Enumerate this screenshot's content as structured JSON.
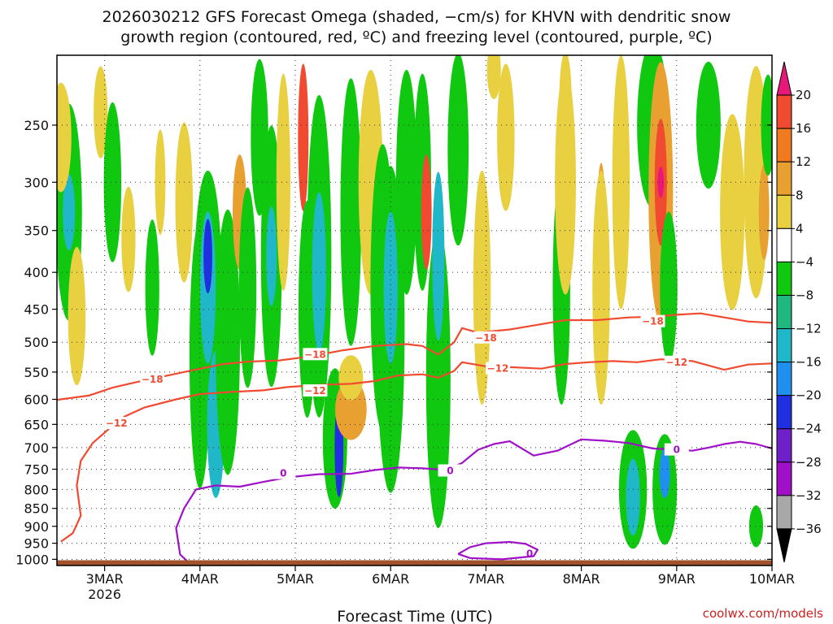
{
  "chart_data": {
    "type": "heatmap",
    "title_line1": "2026030212 GFS Forecast Omega (shaded, −cm/s) for KHVN with dendritic snow",
    "title_line2": "growth region (contoured, red, ºC) and freezing level (contoured, purple, ºC)",
    "xlabel": "Forecast Time (UTC)",
    "credit": "coolwx.com/models",
    "x_ticks": [
      {
        "label": "3MAR",
        "sub": "2026",
        "hours": 12
      },
      {
        "label": "4MAR",
        "sub": "",
        "hours": 36
      },
      {
        "label": "5MAR",
        "sub": "",
        "hours": 60
      },
      {
        "label": "6MAR",
        "sub": "",
        "hours": 84
      },
      {
        "label": "7MAR",
        "sub": "",
        "hours": 108
      },
      {
        "label": "8MAR",
        "sub": "",
        "hours": 132
      },
      {
        "label": "9MAR",
        "sub": "",
        "hours": 156
      },
      {
        "label": "10MAR",
        "sub": "",
        "hours": 180
      }
    ],
    "x_range_hours": [
      0,
      180
    ],
    "y_ticks": [
      250,
      300,
      350,
      400,
      450,
      500,
      550,
      600,
      650,
      700,
      750,
      800,
      850,
      900,
      950,
      1000
    ],
    "y_range_hpa": [
      200,
      1020
    ],
    "y_scale": "log-pressure",
    "colorbar": {
      "labels": [
        "20",
        "16",
        "12",
        "8",
        "4",
        "−4",
        "−8",
        "−12",
        "−16",
        "−20",
        "−24",
        "−28",
        "−32",
        "−36"
      ],
      "bins": [
        {
          "color": "#e8187a"
        },
        {
          "color": "#f04a30"
        },
        {
          "color": "#f07a20"
        },
        {
          "color": "#e8a030"
        },
        {
          "color": "#e8d040"
        },
        {
          "color": "#ffffff"
        },
        {
          "color": "#10c810"
        },
        {
          "color": "#20b880"
        },
        {
          "color": "#20b8c8"
        },
        {
          "color": "#2090f0"
        },
        {
          "color": "#2030e0"
        },
        {
          "color": "#7020c8"
        },
        {
          "color": "#a010c8"
        },
        {
          "color": "#a8a8a8"
        },
        {
          "color": "#000000"
        }
      ]
    },
    "shading_blobs": [
      {
        "t": 3,
        "p": 330,
        "tw": 1.5,
        "pw": 220,
        "c": "#10c810"
      },
      {
        "t": 3,
        "p": 330,
        "tw": 0.7,
        "pw": 80,
        "c": "#20b8c8"
      },
      {
        "t": 1,
        "p": 260,
        "tw": 1.2,
        "pw": 90,
        "c": "#e8d040"
      },
      {
        "t": 5,
        "p": 460,
        "tw": 1.0,
        "pw": 200,
        "c": "#e8d040"
      },
      {
        "t": 11,
        "p": 240,
        "tw": 0.8,
        "pw": 70,
        "c": "#e8d040"
      },
      {
        "t": 14,
        "p": 300,
        "tw": 1.0,
        "pw": 150,
        "c": "#10c810"
      },
      {
        "t": 18,
        "p": 360,
        "tw": 0.8,
        "pw": 120,
        "c": "#e8d040"
      },
      {
        "t": 24,
        "p": 420,
        "tw": 0.8,
        "pw": 180,
        "c": "#10c810"
      },
      {
        "t": 26,
        "p": 300,
        "tw": 0.6,
        "pw": 100,
        "c": "#e8d040"
      },
      {
        "t": 32,
        "p": 320,
        "tw": 1.0,
        "pw": 160,
        "c": "#e8d040"
      },
      {
        "t": 36,
        "p": 520,
        "tw": 1.2,
        "pw": 420,
        "c": "#10c810"
      },
      {
        "t": 38,
        "p": 420,
        "tw": 1.6,
        "pw": 300,
        "c": "#10c810"
      },
      {
        "t": 38,
        "p": 420,
        "tw": 0.9,
        "pw": 200,
        "c": "#20b8c8"
      },
      {
        "t": 38,
        "p": 380,
        "tw": 0.5,
        "pw": 90,
        "c": "#2030e0"
      },
      {
        "t": 40,
        "p": 650,
        "tw": 1.0,
        "pw": 300,
        "c": "#20b8c8"
      },
      {
        "t": 43,
        "p": 500,
        "tw": 1.4,
        "pw": 400,
        "c": "#10c810"
      },
      {
        "t": 46,
        "p": 330,
        "tw": 0.8,
        "pw": 120,
        "c": "#e8a030"
      },
      {
        "t": 48,
        "p": 420,
        "tw": 1.0,
        "pw": 260,
        "c": "#10c810"
      },
      {
        "t": 51,
        "p": 260,
        "tw": 1.0,
        "pw": 140,
        "c": "#10c810"
      },
      {
        "t": 54,
        "p": 380,
        "tw": 1.2,
        "pw": 300,
        "c": "#10c810"
      },
      {
        "t": 54,
        "p": 380,
        "tw": 0.6,
        "pw": 120,
        "c": "#20b8c8"
      },
      {
        "t": 57,
        "p": 300,
        "tw": 0.8,
        "pw": 200,
        "c": "#e8d040"
      },
      {
        "t": 62,
        "p": 260,
        "tw": 0.6,
        "pw": 120,
        "c": "#f04a30"
      },
      {
        "t": 63,
        "p": 450,
        "tw": 1.0,
        "pw": 300,
        "c": "#10c810"
      },
      {
        "t": 66,
        "p": 380,
        "tw": 1.4,
        "pw": 360,
        "c": "#10c810"
      },
      {
        "t": 66,
        "p": 400,
        "tw": 0.8,
        "pw": 200,
        "c": "#20b8c8"
      },
      {
        "t": 70,
        "p": 680,
        "tw": 1.4,
        "pw": 300,
        "c": "#10c810"
      },
      {
        "t": 71,
        "p": 700,
        "tw": 0.5,
        "pw": 220,
        "c": "#2030e0"
      },
      {
        "t": 74,
        "p": 620,
        "tw": 1.8,
        "pw": 120,
        "c": "#e8a030"
      },
      {
        "t": 74,
        "p": 560,
        "tw": 1.4,
        "pw": 80,
        "c": "#e8d040"
      },
      {
        "t": 74,
        "p": 330,
        "tw": 1.2,
        "pw": 280,
        "c": "#10c810"
      },
      {
        "t": 79,
        "p": 300,
        "tw": 1.4,
        "pw": 220,
        "c": "#e8d040"
      },
      {
        "t": 82,
        "p": 420,
        "tw": 1.4,
        "pw": 360,
        "c": "#10c810"
      },
      {
        "t": 84,
        "p": 480,
        "tw": 1.6,
        "pw": 460,
        "c": "#10c810"
      },
      {
        "t": 84,
        "p": 420,
        "tw": 0.8,
        "pw": 200,
        "c": "#20b8c8"
      },
      {
        "t": 88,
        "p": 300,
        "tw": 1.2,
        "pw": 220,
        "c": "#10c810"
      },
      {
        "t": 92,
        "p": 300,
        "tw": 1.0,
        "pw": 200,
        "c": "#10c810"
      },
      {
        "t": 93,
        "p": 330,
        "tw": 0.6,
        "pw": 120,
        "c": "#f04a30"
      },
      {
        "t": 96,
        "p": 560,
        "tw": 1.4,
        "pw": 500,
        "c": "#10c810"
      },
      {
        "t": 96,
        "p": 380,
        "tw": 0.7,
        "pw": 200,
        "c": "#20b8c8"
      },
      {
        "t": 101,
        "p": 270,
        "tw": 1.2,
        "pw": 200,
        "c": "#10c810"
      },
      {
        "t": 107,
        "p": 420,
        "tw": 1.0,
        "pw": 300,
        "c": "#e8d040"
      },
      {
        "t": 110,
        "p": 210,
        "tw": 0.8,
        "pw": 60,
        "c": "#e8d040"
      },
      {
        "t": 113,
        "p": 260,
        "tw": 1.0,
        "pw": 120,
        "c": "#e8d040"
      },
      {
        "t": 127,
        "p": 420,
        "tw": 1.0,
        "pw": 300,
        "c": "#10c810"
      },
      {
        "t": 128,
        "p": 300,
        "tw": 1.2,
        "pw": 220,
        "c": "#e8d040"
      },
      {
        "t": 128,
        "p": 230,
        "tw": 0.7,
        "pw": 80,
        "c": "#e8d040"
      },
      {
        "t": 137,
        "p": 380,
        "tw": 0.6,
        "pw": 220,
        "c": "#e8a030"
      },
      {
        "t": 137,
        "p": 420,
        "tw": 1.0,
        "pw": 300,
        "c": "#e8d040"
      },
      {
        "t": 142,
        "p": 300,
        "tw": 1.0,
        "pw": 300,
        "c": "#e8d040"
      },
      {
        "t": 145,
        "p": 800,
        "tw": 1.6,
        "pw": 300,
        "c": "#10c810"
      },
      {
        "t": 145,
        "p": 820,
        "tw": 0.8,
        "pw": 200,
        "c": "#20b8c8"
      },
      {
        "t": 150,
        "p": 250,
        "tw": 1.8,
        "pw": 180,
        "c": "#10c810"
      },
      {
        "t": 152,
        "p": 310,
        "tw": 1.4,
        "pw": 300,
        "c": "#e8a030"
      },
      {
        "t": 152,
        "p": 300,
        "tw": 0.7,
        "pw": 120,
        "c": "#f04a30"
      },
      {
        "t": 152,
        "p": 300,
        "tw": 0.35,
        "pw": 30,
        "c": "#e8187a"
      },
      {
        "t": 154,
        "p": 420,
        "tw": 1.0,
        "pw": 200,
        "c": "#10c810"
      },
      {
        "t": 153,
        "p": 800,
        "tw": 1.4,
        "pw": 280,
        "c": "#10c810"
      },
      {
        "t": 153,
        "p": 760,
        "tw": 0.6,
        "pw": 120,
        "c": "#2090f0"
      },
      {
        "t": 164,
        "p": 250,
        "tw": 1.4,
        "pw": 100,
        "c": "#10c810"
      },
      {
        "t": 170,
        "p": 330,
        "tw": 1.4,
        "pw": 200,
        "c": "#e8d040"
      },
      {
        "t": 176,
        "p": 300,
        "tw": 1.4,
        "pw": 240,
        "c": "#e8d040"
      },
      {
        "t": 178,
        "p": 330,
        "tw": 0.6,
        "pw": 100,
        "c": "#e8a030"
      },
      {
        "t": 176,
        "p": 900,
        "tw": 0.8,
        "pw": 120,
        "c": "#10c810"
      },
      {
        "t": 179,
        "p": 250,
        "tw": 0.8,
        "pw": 80,
        "c": "#10c810"
      }
    ],
    "contours": [
      {
        "label": "−18",
        "color": "#f04a30",
        "label_at": [
          [
            24,
            563
          ],
          [
            65,
            520
          ],
          [
            108,
            493
          ],
          [
            150,
            468
          ]
        ],
        "points": [
          [
            0,
            601
          ],
          [
            8,
            593
          ],
          [
            14,
            578
          ],
          [
            20,
            568
          ],
          [
            28,
            556
          ],
          [
            34,
            547
          ],
          [
            42,
            536
          ],
          [
            48,
            532
          ],
          [
            56,
            530
          ],
          [
            64,
            523
          ],
          [
            72,
            513
          ],
          [
            80,
            506
          ],
          [
            88,
            503
          ],
          [
            92,
            506
          ],
          [
            96,
            520
          ],
          [
            100,
            500
          ],
          [
            102,
            478
          ],
          [
            106,
            485
          ],
          [
            114,
            480
          ],
          [
            120,
            474
          ],
          [
            128,
            466
          ],
          [
            136,
            466
          ],
          [
            144,
            462
          ],
          [
            150,
            461
          ],
          [
            156,
            458
          ],
          [
            162,
            456
          ],
          [
            168,
            462
          ],
          [
            174,
            468
          ],
          [
            180,
            470
          ]
        ]
      },
      {
        "label": "−12",
        "color": "#f04a30",
        "label_at": [
          [
            15,
            648
          ],
          [
            65,
            584
          ],
          [
            111,
            544
          ],
          [
            156,
            533
          ]
        ],
        "points": [
          [
            1,
            945
          ],
          [
            4,
            920
          ],
          [
            6,
            870
          ],
          [
            5,
            790
          ],
          [
            6,
            730
          ],
          [
            9,
            690
          ],
          [
            13,
            660
          ],
          [
            17,
            634
          ],
          [
            22,
            616
          ],
          [
            30,
            600
          ],
          [
            36,
            590
          ],
          [
            44,
            586
          ],
          [
            52,
            583
          ],
          [
            58,
            577
          ],
          [
            66,
            573
          ],
          [
            74,
            571
          ],
          [
            80,
            566
          ],
          [
            86,
            556
          ],
          [
            92,
            554
          ],
          [
            96,
            560
          ],
          [
            100,
            548
          ],
          [
            102,
            533
          ],
          [
            108,
            540
          ],
          [
            116,
            542
          ],
          [
            122,
            544
          ],
          [
            128,
            536
          ],
          [
            134,
            533
          ],
          [
            140,
            531
          ],
          [
            146,
            533
          ],
          [
            152,
            528
          ],
          [
            160,
            531
          ],
          [
            168,
            546
          ],
          [
            174,
            537
          ],
          [
            180,
            535
          ]
        ]
      },
      {
        "label": "0",
        "color": "#a010c8",
        "label_at": [
          [
            57,
            760
          ],
          [
            99,
            754
          ],
          [
            156,
            705
          ],
          [
            119,
            982
          ]
        ],
        "points": [
          [
            29,
            1020
          ],
          [
            33,
            1008
          ],
          [
            31,
            985
          ],
          [
            30,
            905
          ],
          [
            32,
            850
          ],
          [
            35,
            800
          ],
          [
            40,
            790
          ],
          [
            46,
            793
          ],
          [
            52,
            781
          ],
          [
            58,
            770
          ],
          [
            66,
            762
          ],
          [
            74,
            761
          ],
          [
            80,
            752
          ],
          [
            86,
            746
          ],
          [
            92,
            748
          ],
          [
            98,
            752
          ],
          [
            102,
            735
          ],
          [
            106,
            705
          ],
          [
            110,
            692
          ],
          [
            114,
            686
          ],
          [
            120,
            718
          ],
          [
            126,
            707
          ],
          [
            132,
            682
          ],
          [
            138,
            685
          ],
          [
            144,
            690
          ],
          [
            150,
            702
          ],
          [
            156,
            705
          ],
          [
            160,
            707
          ],
          [
            164,
            700
          ],
          [
            168,
            692
          ],
          [
            172,
            687
          ],
          [
            176,
            692
          ],
          [
            180,
            702
          ]
        ]
      },
      {
        "label": "",
        "color": "#a010c8",
        "label_at": [],
        "points": [
          [
            101,
            983
          ],
          [
            104,
            962
          ],
          [
            108,
            950
          ],
          [
            114,
            946
          ],
          [
            118,
            952
          ],
          [
            121,
            970
          ],
          [
            120,
            990
          ],
          [
            112,
            1000
          ],
          [
            104,
            996
          ],
          [
            101,
            983
          ]
        ]
      }
    ],
    "ground_band_hpa": [
      1020,
      1003
    ],
    "grid": true
  }
}
